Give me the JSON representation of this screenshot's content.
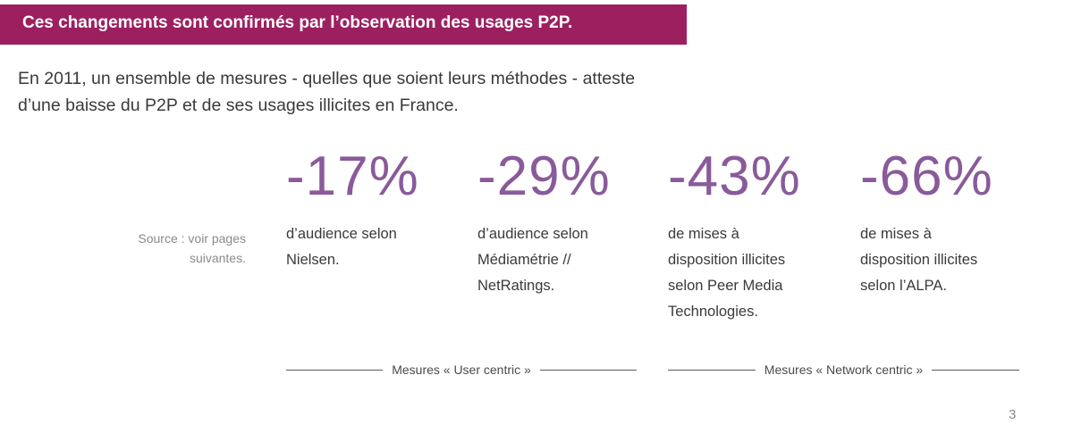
{
  "banner": {
    "title": "Ces changements sont confirmés par l’observation des usages P2P."
  },
  "intro": {
    "lines": [
      "En 2011, un ensemble de mesures - quelles que soient leurs méthodes - atteste",
      "d’une baisse du P2P et de ses usages illicites en France."
    ]
  },
  "source": {
    "lines": [
      "Source : voir pages",
      "suivantes."
    ]
  },
  "stats": [
    {
      "value": "-17%",
      "lines": [
        "d’audience selon",
        "Nielsen."
      ]
    },
    {
      "value": "-29%",
      "lines": [
        "d’audience selon",
        "Médiamétrie //",
        "NetRatings."
      ]
    },
    {
      "value": "-43%",
      "lines": [
        "de mises à",
        "disposition illicites",
        "selon Peer Media",
        "Technologies."
      ]
    },
    {
      "value": "-66%",
      "lines": [
        "de mises à",
        "disposition illicites",
        "selon l’ALPA."
      ]
    }
  ],
  "groups": [
    {
      "label": "Mesures « User centric »"
    },
    {
      "label": "Mesures « Network centric »"
    }
  ],
  "page_number": "3",
  "colors": {
    "banner": "#9c2060",
    "stat_value": "#8a5a9a"
  }
}
